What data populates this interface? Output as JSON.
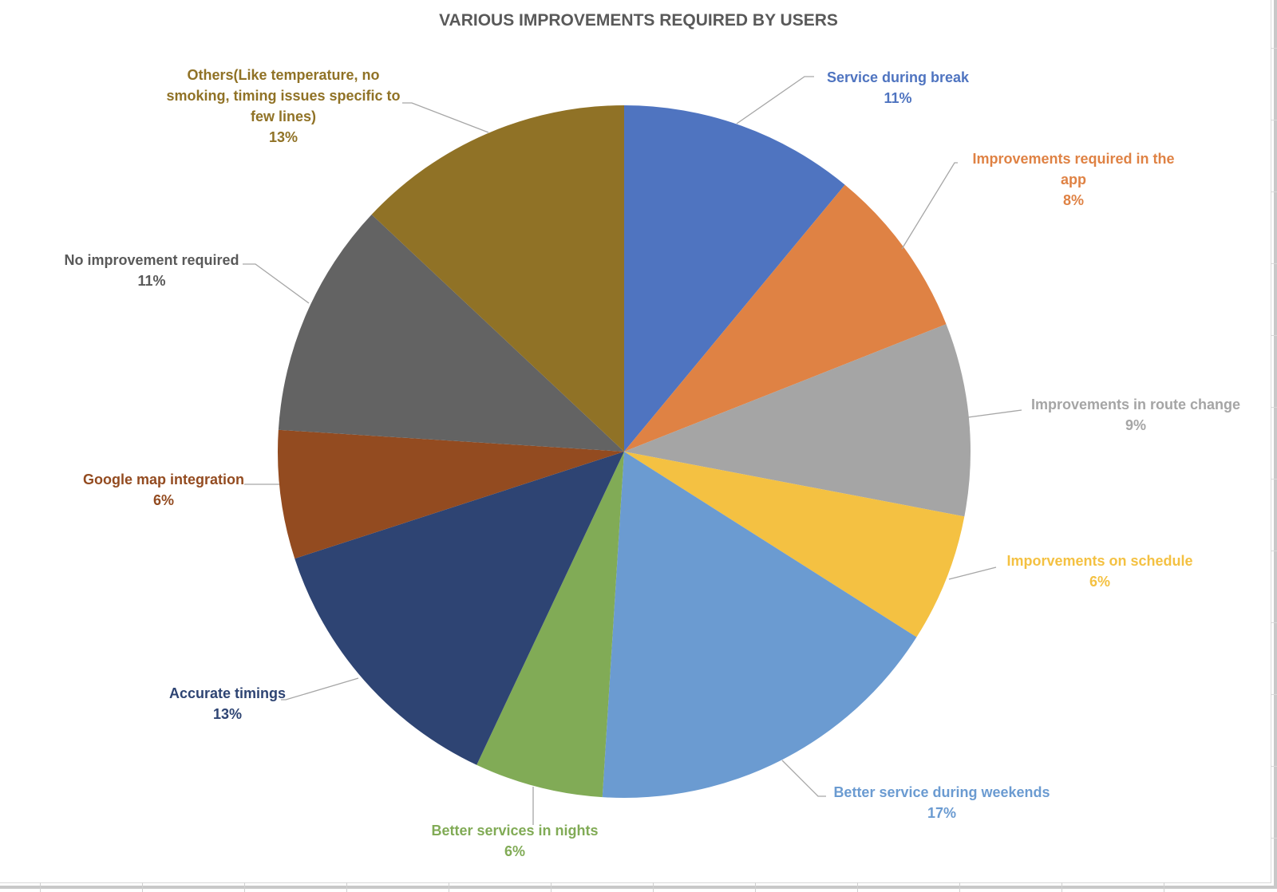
{
  "chart_data": {
    "type": "pie",
    "title": "VARIOUS IMPROVEMENTS REQUIRED BY USERS",
    "slices": [
      {
        "label": "Service during break",
        "value": 11,
        "value_label": "11%",
        "color": "#4f74c0"
      },
      {
        "label": "Improvements required in the app",
        "value": 8,
        "value_label": "8%",
        "color": "#df8244"
      },
      {
        "label": "Improvements in route change",
        "value": 9,
        "value_label": "9%",
        "color": "#a5a5a5"
      },
      {
        "label": "Imporvements on schedule",
        "value": 6,
        "value_label": "6%",
        "color": "#f4c142"
      },
      {
        "label": "Better service during weekends",
        "value": 17,
        "value_label": "17%",
        "color": "#6b9bd1"
      },
      {
        "label": "Better services in nights",
        "value": 6,
        "value_label": "6%",
        "color": "#81ab56"
      },
      {
        "label": "Accurate timings",
        "value": 13,
        "value_label": "13%",
        "color": "#2e4473"
      },
      {
        "label": "Google map integration",
        "value": 6,
        "value_label": "6%",
        "color": "#934b20"
      },
      {
        "label": "No improvement required",
        "value": 11,
        "value_label": "11%",
        "color": "#636363"
      },
      {
        "label": "Others(Like temperature, no smoking, timing issues specific to few lines)",
        "value": 13,
        "value_label": "13%",
        "color": "#907226"
      }
    ]
  }
}
